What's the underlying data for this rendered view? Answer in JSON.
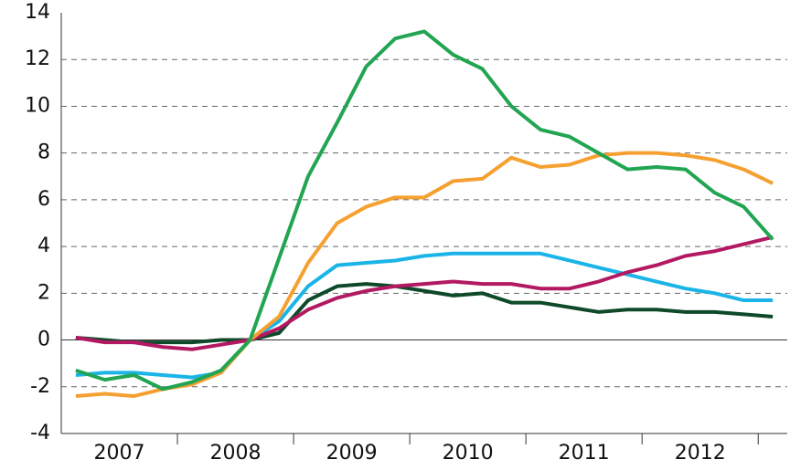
{
  "chart_data": {
    "type": "line",
    "x": [
      2007.125,
      2007.375,
      2007.625,
      2007.875,
      2008.125,
      2008.375,
      2008.625,
      2008.875,
      2009.125,
      2009.375,
      2009.625,
      2009.875,
      2010.125,
      2010.375,
      2010.625,
      2010.875,
      2011.125,
      2011.375,
      2011.625,
      2011.875,
      2012.125,
      2012.375,
      2012.625,
      2012.875,
      2013.125
    ],
    "xlim": [
      2007,
      2013.25
    ],
    "xticks": [
      {
        "value": 2007.5,
        "label": "2007"
      },
      {
        "value": 2008.5,
        "label": "2008"
      },
      {
        "value": 2009.5,
        "label": "2009"
      },
      {
        "value": 2010.5,
        "label": "2010"
      },
      {
        "value": 2011.5,
        "label": "2011"
      },
      {
        "value": 2012.5,
        "label": "2012"
      }
    ],
    "ylim": [
      -4,
      14
    ],
    "yticks": [
      -4,
      -2,
      0,
      2,
      4,
      6,
      8,
      10,
      12,
      14
    ],
    "grid": true,
    "series": [
      {
        "color": "#0e4a2a",
        "values": [
          0.1,
          0.0,
          -0.1,
          -0.1,
          -0.1,
          0.0,
          0,
          0.3,
          1.7,
          2.3,
          2.4,
          2.3,
          2.1,
          1.9,
          2.0,
          1.6,
          1.6,
          1.4,
          1.2,
          1.3,
          1.3,
          1.2,
          1.2,
          1.1,
          1.0
        ]
      },
      {
        "color": "#1ab4e8",
        "values": [
          -1.5,
          -1.4,
          -1.4,
          -1.5,
          -1.6,
          -1.4,
          0,
          0.8,
          2.3,
          3.2,
          3.3,
          3.4,
          3.6,
          3.7,
          3.7,
          3.7,
          3.7,
          3.4,
          3.1,
          2.8,
          2.5,
          2.2,
          2.0,
          1.7,
          1.7
        ]
      },
      {
        "color": "#b31962",
        "values": [
          0.1,
          -0.1,
          -0.1,
          -0.3,
          -0.4,
          -0.2,
          0,
          0.5,
          1.3,
          1.8,
          2.1,
          2.3,
          2.4,
          2.5,
          2.4,
          2.4,
          2.2,
          2.2,
          2.5,
          2.9,
          3.2,
          3.6,
          3.8,
          4.1,
          4.4
        ]
      },
      {
        "color": "#f5a031",
        "values": [
          -2.4,
          -2.3,
          -2.4,
          -2.1,
          -1.9,
          -1.4,
          0,
          1.0,
          3.3,
          5.0,
          5.7,
          6.1,
          6.1,
          6.8,
          6.9,
          7.8,
          7.4,
          7.5,
          7.9,
          8.0,
          8.0,
          7.9,
          7.7,
          7.3,
          6.7
        ]
      },
      {
        "color": "#22a552",
        "values": [
          -1.3,
          -1.7,
          -1.5,
          -2.1,
          -1.8,
          -1.3,
          0,
          3.5,
          7.0,
          9.3,
          11.7,
          12.9,
          13.2,
          12.2,
          11.6,
          10.0,
          9.0,
          8.7,
          8.0,
          7.3,
          7.4,
          7.3,
          6.3,
          5.7,
          4.3
        ]
      }
    ]
  }
}
